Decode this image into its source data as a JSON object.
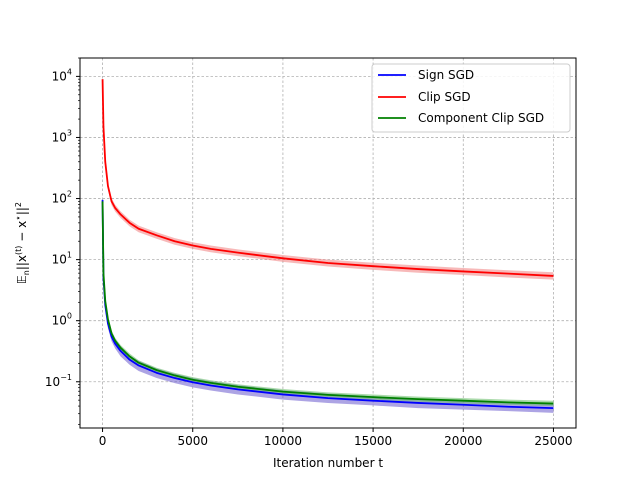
{
  "chart_data": {
    "type": "line",
    "title": "",
    "xlabel": "Iteration number t",
    "ylabel_parts": {
      "e": "𝔼",
      "sub": "n",
      "body": "||x",
      "sup": "(t)",
      "rest": " − x",
      "star": "⋆",
      "end": "||",
      "sq": "2"
    },
    "yscale": "log",
    "xlim": [
      -1250,
      26250
    ],
    "ylim": [
      0.0175,
      20000
    ],
    "xticks": [
      0,
      5000,
      10000,
      15000,
      20000,
      25000
    ],
    "xtick_labels": [
      "0",
      "5000",
      "10000",
      "15000",
      "20000",
      "25000"
    ],
    "yticks": [
      0.1,
      1,
      10,
      100,
      1000,
      10000
    ],
    "ytick_labels": [
      {
        "base": "10",
        "exp": "−1"
      },
      {
        "base": "10",
        "exp": "0"
      },
      {
        "base": "10",
        "exp": "1"
      },
      {
        "base": "10",
        "exp": "2"
      },
      {
        "base": "10",
        "exp": "3"
      },
      {
        "base": "10",
        "exp": "4"
      }
    ],
    "grid": true,
    "legend_position": "top-right",
    "x": [
      1,
      50,
      150,
      300,
      500,
      700,
      1000,
      1500,
      2000,
      3000,
      4000,
      5000,
      6000,
      7500,
      10000,
      12500,
      15000,
      17500,
      20000,
      22500,
      25000
    ],
    "series": [
      {
        "name": "Sign SGD",
        "color": "#0000ff",
        "band_color": "#6a5acd",
        "values": [
          95,
          5,
          1.8,
          0.9,
          0.55,
          0.42,
          0.32,
          0.23,
          0.185,
          0.14,
          0.115,
          0.098,
          0.087,
          0.075,
          0.062,
          0.054,
          0.049,
          0.045,
          0.042,
          0.039,
          0.037
        ],
        "band_low": [
          80,
          4.3,
          1.5,
          0.75,
          0.46,
          0.35,
          0.26,
          0.19,
          0.15,
          0.115,
          0.095,
          0.081,
          0.072,
          0.062,
          0.051,
          0.045,
          0.041,
          0.037,
          0.035,
          0.033,
          0.031
        ],
        "band_high": [
          110,
          5.8,
          2.1,
          1.05,
          0.64,
          0.49,
          0.38,
          0.27,
          0.22,
          0.165,
          0.135,
          0.115,
          0.102,
          0.088,
          0.073,
          0.064,
          0.058,
          0.053,
          0.049,
          0.046,
          0.043
        ]
      },
      {
        "name": "Clip SGD",
        "color": "#ff0000",
        "band_color": "#f08080",
        "values": [
          9000,
          1500,
          400,
          160,
          90,
          70,
          55,
          40,
          32,
          25,
          20,
          17,
          15,
          13,
          10.5,
          8.8,
          7.8,
          7,
          6.4,
          5.9,
          5.4
        ],
        "band_low": [
          8500,
          1350,
          360,
          140,
          78,
          61,
          48,
          35,
          28,
          22,
          17.5,
          15,
          13.2,
          11.4,
          9.2,
          7.7,
          6.8,
          6.1,
          5.6,
          5.1,
          4.7
        ],
        "band_high": [
          9500,
          1650,
          440,
          180,
          102,
          79,
          62,
          45,
          36,
          28,
          22.5,
          19.2,
          17,
          14.7,
          11.9,
          10,
          8.9,
          8,
          7.3,
          6.7,
          6.2
        ]
      },
      {
        "name": "Component Clip SGD",
        "color": "#008000",
        "band_color": "#66bb66",
        "values": [
          90,
          6,
          2.1,
          1.05,
          0.62,
          0.47,
          0.36,
          0.26,
          0.205,
          0.155,
          0.127,
          0.108,
          0.096,
          0.083,
          0.069,
          0.061,
          0.056,
          0.052,
          0.049,
          0.046,
          0.044
        ],
        "band_low": [
          82,
          5.3,
          1.85,
          0.93,
          0.55,
          0.42,
          0.32,
          0.23,
          0.185,
          0.14,
          0.114,
          0.098,
          0.087,
          0.075,
          0.063,
          0.056,
          0.051,
          0.047,
          0.044,
          0.042,
          0.04
        ],
        "band_high": [
          98,
          6.7,
          2.35,
          1.17,
          0.69,
          0.52,
          0.4,
          0.29,
          0.225,
          0.17,
          0.14,
          0.119,
          0.106,
          0.091,
          0.076,
          0.067,
          0.062,
          0.057,
          0.054,
          0.051,
          0.049
        ]
      }
    ]
  }
}
